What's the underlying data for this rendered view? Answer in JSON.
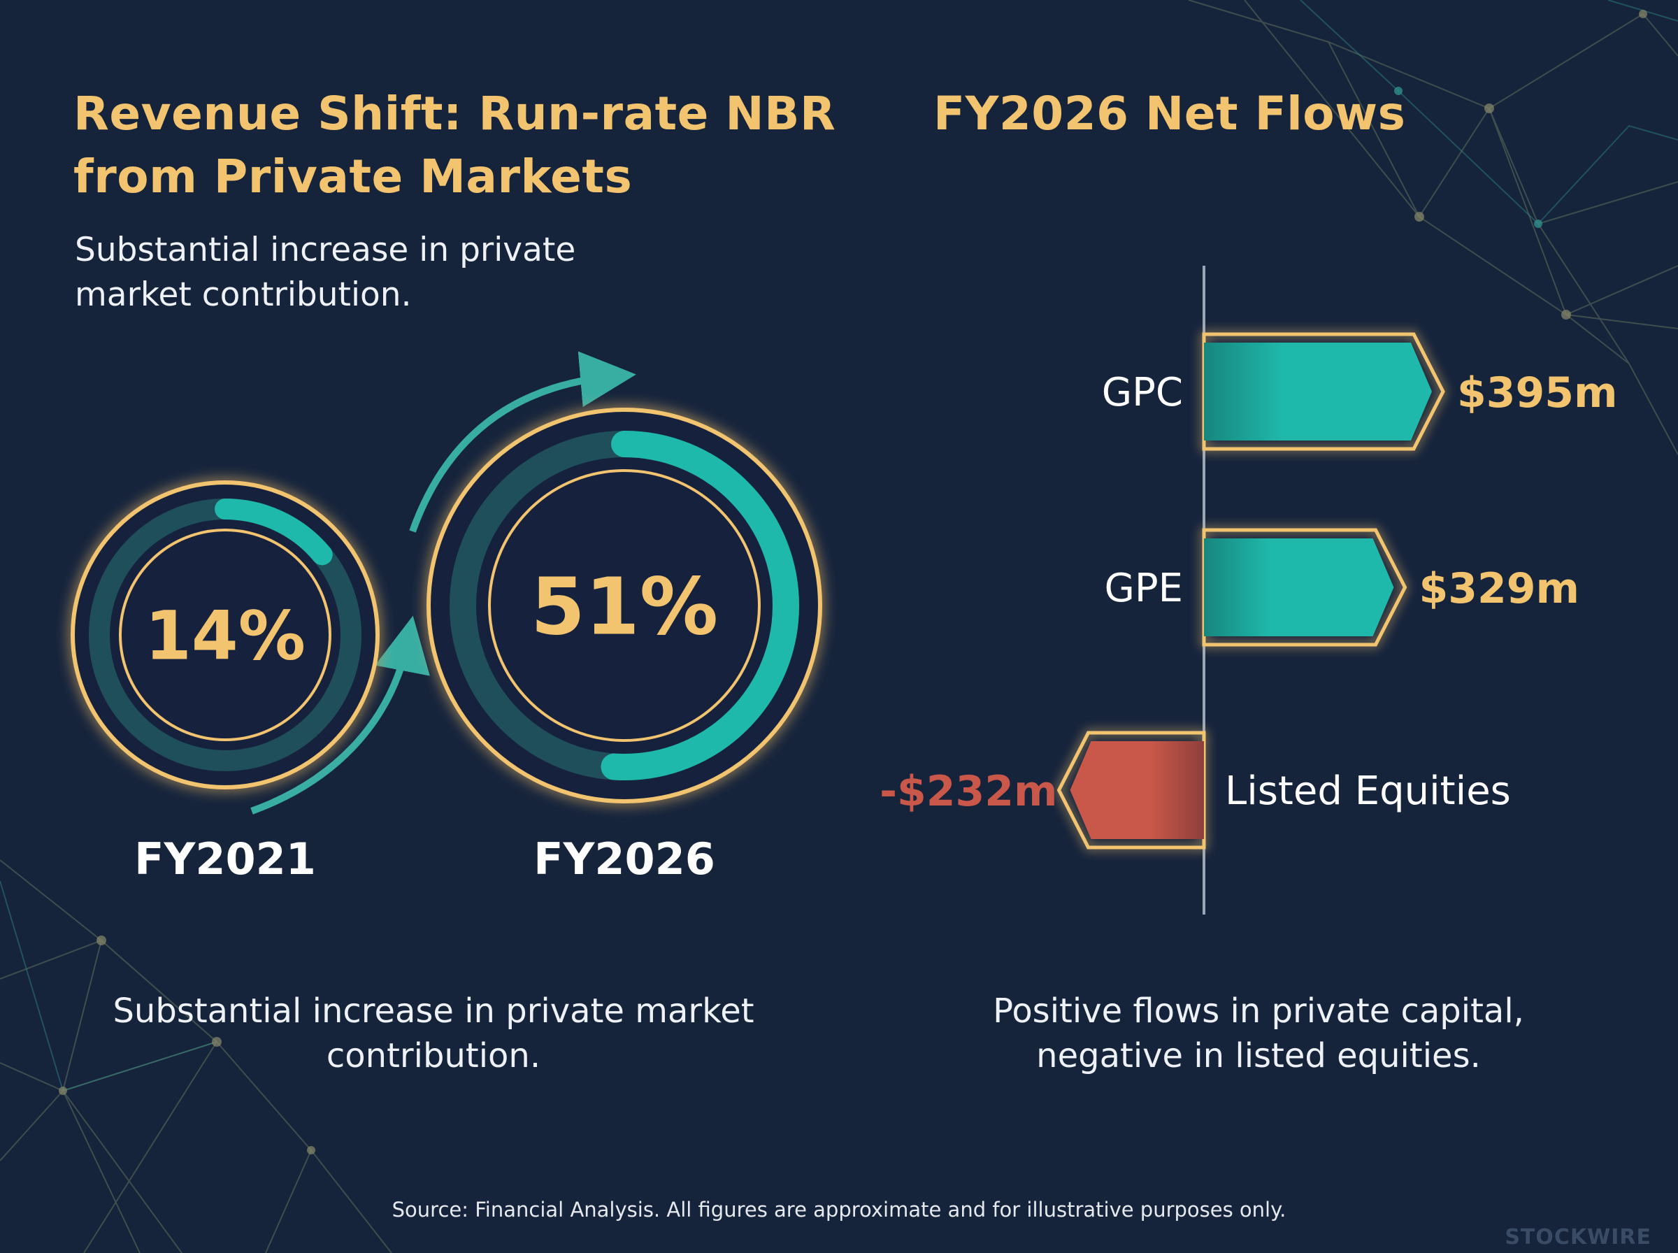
{
  "left_panel": {
    "title": "Revenue Shift: Run-rate NBR from Private Markets",
    "subtitle": "Substantial increase in private market contribution.",
    "caption": "Substantial increase in private market contribution."
  },
  "right_panel": {
    "title": "FY2026 Net Flows",
    "caption": "Positive flows in private capital, negative in listed equities."
  },
  "source": "Source: Financial Analysis. All figures are approximate and for illustrative purposes only.",
  "brand": "STOCKWIRE",
  "colors": {
    "background": "#15233b",
    "gold": "#f2c46f",
    "teal": "#1fb9ab",
    "red": "#c9584a",
    "text": "#eef1f5"
  },
  "chart_data": [
    {
      "type": "pie",
      "title": "Revenue Shift: Run-rate NBR from Private Markets",
      "categories": [
        "FY2021",
        "FY2026"
      ],
      "values": [
        14,
        51
      ],
      "value_labels": [
        "14%",
        "51%"
      ],
      "unit": "%"
    },
    {
      "type": "bar",
      "orientation": "horizontal",
      "title": "FY2026 Net Flows",
      "categories": [
        "GPC",
        "GPE",
        "Listed Equities"
      ],
      "values": [
        395,
        329,
        -232
      ],
      "value_labels": [
        "$395m",
        "$329m",
        "-$232m"
      ],
      "unit": "$m"
    }
  ]
}
